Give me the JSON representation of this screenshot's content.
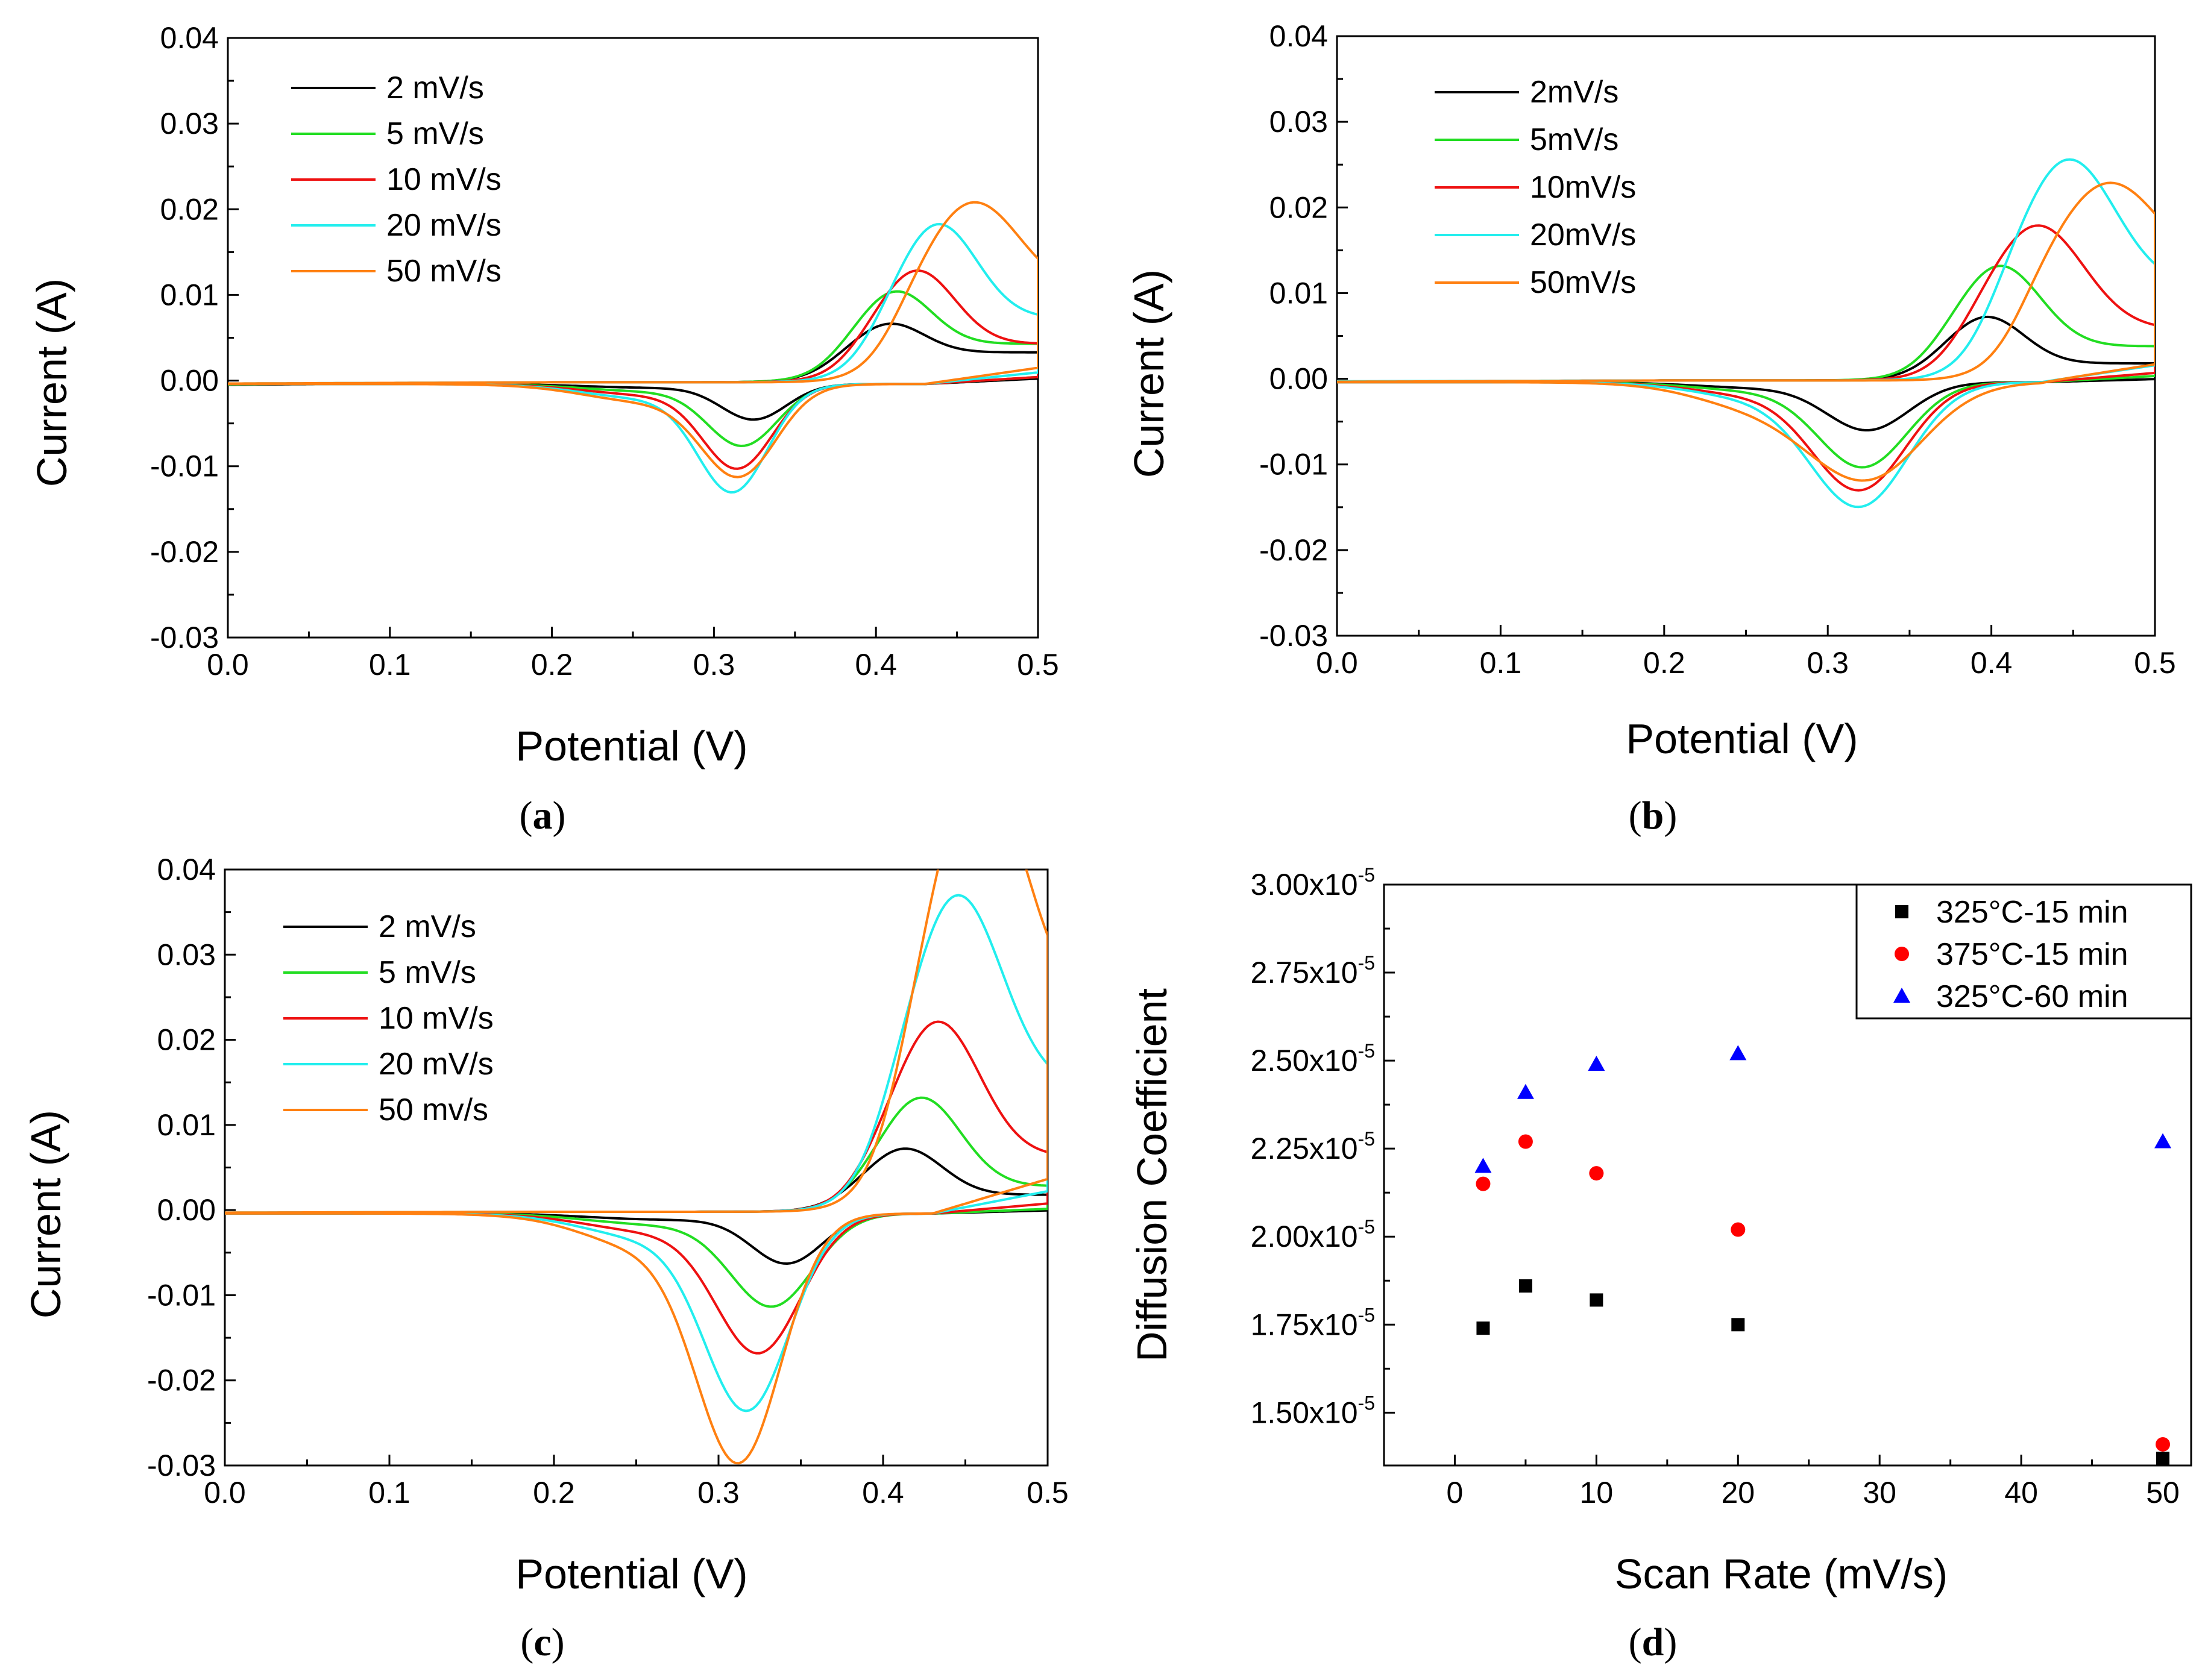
{
  "colors": {
    "black": "#000000",
    "green": "#22dd22",
    "red": "#ee1111",
    "cyan": "#22eeee",
    "orange": "#ff8011",
    "blue": "#0000ff",
    "marker_red": "#ff0000"
  },
  "chart_data": [
    {
      "id": "a",
      "type": "line",
      "panel_label": "a",
      "xlabel": "Potential (V)",
      "ylabel": "Current (A)",
      "xlim": [
        0.0,
        0.5
      ],
      "ylim": [
        -0.03,
        0.04
      ],
      "xticks": [
        "0.0",
        "0.1",
        "0.2",
        "0.3",
        "0.4",
        "0.5"
      ],
      "yticks": [
        "-0.03",
        "-0.02",
        "-0.01",
        "0.00",
        "0.01",
        "0.02",
        "0.03",
        "0.04"
      ],
      "legend_position": "top-left",
      "series": [
        {
          "name": "2 mV/s",
          "color": "#000000",
          "params": {
            "Ox": 0.0035,
            "Vo": 0.408,
            "wo": 0.03,
            "Rc": 0.0035,
            "Red": 0.0038,
            "Vr": 0.325,
            "wr": 0.028,
            "Ra": 0.0005,
            "s": 0.003
          }
        },
        {
          "name": "5 mV/s",
          "color": "#22dd22",
          "params": {
            "Ox": 0.0063,
            "Vo": 0.412,
            "wo": 0.031,
            "Rc": 0.0045,
            "Red": 0.0065,
            "Vr": 0.318,
            "wr": 0.03,
            "Ra": 0.001,
            "s": 0.0025
          }
        },
        {
          "name": "10 mV/s",
          "color": "#ee1111",
          "params": {
            "Ox": 0.0087,
            "Vo": 0.425,
            "wo": 0.033,
            "Rc": 0.0045,
            "Red": 0.0088,
            "Vr": 0.315,
            "wr": 0.03,
            "Ra": 0.0015,
            "s": 0.002
          }
        },
        {
          "name": "20 mV/s",
          "color": "#22eeee",
          "params": {
            "Ox": 0.0112,
            "Vo": 0.438,
            "wo": 0.034,
            "Rc": 0.0075,
            "Red": 0.0112,
            "Vr": 0.312,
            "wr": 0.03,
            "Ra": 0.002,
            "s": 0.0015
          }
        },
        {
          "name": "50 mV/s",
          "color": "#ff8011",
          "params": {
            "Ox": 0.0107,
            "Vo": 0.46,
            "wo": 0.04,
            "Rc": 0.0105,
            "Red": 0.009,
            "Vr": 0.316,
            "wr": 0.032,
            "Ra": 0.0025,
            "s": 0.0015
          }
        }
      ]
    },
    {
      "id": "b",
      "type": "line",
      "panel_label": "b",
      "xlabel": "Potential (V)",
      "ylabel": "Current (A)",
      "xlim": [
        0.0,
        0.5
      ],
      "ylim": [
        -0.03,
        0.04
      ],
      "xticks": [
        "0.0",
        "0.1",
        "0.2",
        "0.3",
        "0.4",
        "0.5"
      ],
      "yticks": [
        "-0.03",
        "-0.02",
        "-0.01",
        "0.00",
        "0.01",
        "0.02",
        "0.03",
        "0.04"
      ],
      "legend_position": "top-left",
      "series": [
        {
          "name": "2mV/s",
          "color": "#000000",
          "params": {
            "Ox": 0.0055,
            "Vo": 0.397,
            "wo": 0.032,
            "Rc": 0.002,
            "Red": 0.005,
            "Vr": 0.325,
            "wr": 0.035,
            "Ra": 0.0008,
            "s": 0.002
          }
        },
        {
          "name": "5mV/s",
          "color": "#22dd22",
          "params": {
            "Ox": 0.0095,
            "Vo": 0.405,
            "wo": 0.035,
            "Rc": 0.004,
            "Red": 0.009,
            "Vr": 0.322,
            "wr": 0.038,
            "Ra": 0.0012,
            "s": 0.0015
          }
        },
        {
          "name": "10mV/s",
          "color": "#ee1111",
          "params": {
            "Ox": 0.0122,
            "Vo": 0.428,
            "wo": 0.04,
            "Rc": 0.006,
            "Red": 0.0112,
            "Vr": 0.32,
            "wr": 0.04,
            "Ra": 0.0018,
            "s": 0.0012
          }
        },
        {
          "name": "20mV/s",
          "color": "#22eeee",
          "params": {
            "Ox": 0.015,
            "Vo": 0.447,
            "wo": 0.04,
            "Rc": 0.011,
            "Red": 0.0128,
            "Vr": 0.32,
            "wr": 0.042,
            "Ra": 0.0022,
            "s": 0.001
          }
        },
        {
          "name": "50mV/s",
          "color": "#ff8011",
          "params": {
            "Ox": 0.0116,
            "Vo": 0.472,
            "wo": 0.045,
            "Rc": 0.0116,
            "Red": 0.0085,
            "Vr": 0.325,
            "wr": 0.05,
            "Ra": 0.0035,
            "s": 0.0015
          }
        }
      ]
    },
    {
      "id": "c",
      "type": "line",
      "panel_label": "c",
      "xlabel": "Potential (V)",
      "ylabel": "Current (A)",
      "xlim": [
        0.0,
        0.5
      ],
      "ylim": [
        -0.03,
        0.04
      ],
      "xticks": [
        "0.0",
        "0.1",
        "0.2",
        "0.3",
        "0.4",
        "0.5"
      ],
      "yticks": [
        "-0.03",
        "-0.02",
        "-0.01",
        "0.00",
        "0.01",
        "0.02",
        "0.03",
        "0.04"
      ],
      "legend_position": "top-left",
      "series": [
        {
          "name": "2 mV/s",
          "color": "#000000",
          "params": {
            "Ox": 0.0055,
            "Vo": 0.413,
            "wo": 0.032,
            "Rc": 0.002,
            "Red": 0.0053,
            "Vr": 0.342,
            "wr": 0.03,
            "Ra": 0.0008,
            "s": 0.002
          }
        },
        {
          "name": "5 mV/s",
          "color": "#22dd22",
          "params": {
            "Ox": 0.0105,
            "Vo": 0.423,
            "wo": 0.034,
            "Rc": 0.003,
            "Red": 0.0098,
            "Vr": 0.333,
            "wr": 0.035,
            "Ra": 0.0015,
            "s": 0.0015
          }
        },
        {
          "name": "10 mV/s",
          "color": "#ee1111",
          "params": {
            "Ox": 0.016,
            "Vo": 0.433,
            "wo": 0.036,
            "Rc": 0.0065,
            "Red": 0.0145,
            "Vr": 0.325,
            "wr": 0.036,
            "Ra": 0.0025,
            "s": 0.0012
          }
        },
        {
          "name": "20 mV/s",
          "color": "#22eeee",
          "params": {
            "Ox": 0.023,
            "Vo": 0.445,
            "wo": 0.038,
            "Rc": 0.0145,
            "Red": 0.0205,
            "Vr": 0.318,
            "wr": 0.036,
            "Ra": 0.0035,
            "s": 0.001
          }
        },
        {
          "name": "50 mv/s",
          "color": "#ff8011",
          "params": {
            "Ox": 0.03,
            "Vo": 0.458,
            "wo": 0.04,
            "Rc": 0.0225,
            "Red": 0.0255,
            "Vr": 0.313,
            "wr": 0.036,
            "Ra": 0.005,
            "s": 0.001
          }
        }
      ]
    },
    {
      "id": "d",
      "type": "scatter",
      "panel_label": "d",
      "xlabel": "Scan Rate (mV/s)",
      "ylabel": "Diffusion Coefficient",
      "xlim": [
        -5,
        52
      ],
      "ylim": [
        1.35,
        3.0
      ],
      "y_exponent": "-5",
      "y_mantissa_labels": [
        "1.50x10",
        "1.75x10",
        "2.00x10",
        "2.25x10",
        "2.50x10",
        "2.75x10",
        "3.00x10"
      ],
      "ytick_values": [
        1.5,
        1.75,
        2.0,
        2.25,
        2.5,
        2.75,
        3.0
      ],
      "xticks": [
        "0",
        "10",
        "20",
        "30",
        "40",
        "50"
      ],
      "xtick_values": [
        0,
        10,
        20,
        30,
        40,
        50
      ],
      "legend_position": "top-right",
      "series": [
        {
          "name": "325°C-15 min",
          "marker": "square",
          "color": "#000000",
          "x": [
            2,
            5,
            10,
            20,
            50
          ],
          "y": [
            1.74,
            1.86,
            1.82,
            1.75,
            1.37
          ]
        },
        {
          "name": "375°C-15 min",
          "marker": "circle",
          "color": "#ff0000",
          "x": [
            2,
            5,
            10,
            20,
            50
          ],
          "y": [
            2.15,
            2.27,
            2.18,
            2.02,
            1.41
          ]
        },
        {
          "name": "325°C-60 min",
          "marker": "triangle",
          "color": "#0000ff",
          "x": [
            2,
            5,
            10,
            20,
            50
          ],
          "y": [
            2.2,
            2.41,
            2.49,
            2.52,
            2.27
          ]
        }
      ]
    }
  ]
}
